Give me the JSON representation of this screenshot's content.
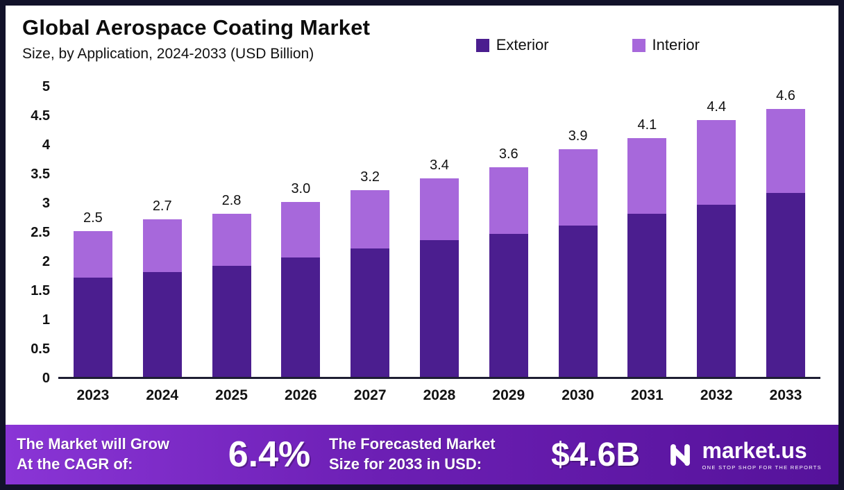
{
  "header": {
    "title": "Global Aerospace Coating Market",
    "subtitle": "Size, by Application, 2024-2033 (USD Billion)"
  },
  "legend": {
    "items": [
      {
        "label": "Exterior",
        "color": "#4b1e8f"
      },
      {
        "label": "Interior",
        "color": "#a768db"
      }
    ]
  },
  "chart_data": {
    "type": "bar",
    "stacked": true,
    "title": "Global Aerospace Coating Market Size, by Application, 2024-2033 (USD Billion)",
    "categories": [
      "2023",
      "2024",
      "2025",
      "2026",
      "2027",
      "2028",
      "2029",
      "2030",
      "2031",
      "2032",
      "2033"
    ],
    "series": [
      {
        "name": "Exterior",
        "color": "#4b1e8f",
        "values": [
          1.7,
          1.8,
          1.9,
          2.05,
          2.2,
          2.35,
          2.45,
          2.6,
          2.8,
          2.95,
          3.15
        ]
      },
      {
        "name": "Interior",
        "color": "#a768db",
        "values": [
          0.8,
          0.9,
          0.9,
          0.95,
          1.0,
          1.05,
          1.15,
          1.3,
          1.3,
          1.45,
          1.45
        ]
      }
    ],
    "totals": [
      2.5,
      2.7,
      2.8,
      3.0,
      3.2,
      3.4,
      3.6,
      3.9,
      4.1,
      4.4,
      4.6
    ],
    "total_labels": [
      "2.5",
      "2.7",
      "2.8",
      "3.0",
      "3.2",
      "3.4",
      "3.6",
      "3.9",
      "4.1",
      "4.4",
      "4.6"
    ],
    "xlabel": "",
    "ylabel": "",
    "ylim": [
      0,
      5
    ],
    "ytick_labels": [
      "0",
      "0.5",
      "1",
      "1.5",
      "2",
      "2.5",
      "3",
      "3.5",
      "4",
      "4.5",
      "5"
    ],
    "ytick_values": [
      0,
      0.5,
      1,
      1.5,
      2,
      2.5,
      3,
      3.5,
      4,
      4.5,
      5
    ],
    "grid": false,
    "legend_position": "top-right"
  },
  "footer": {
    "cagr_label_line1": "The Market will Grow",
    "cagr_label_line2": "At the CAGR of:",
    "cagr_value": "6.4%",
    "forecast_label_line1": "The Forecasted Market",
    "forecast_label_line2": "Size for 2033 in USD:",
    "forecast_value": "$4.6B",
    "brand_name": "market.us",
    "brand_tagline": "ONE STOP SHOP FOR THE REPORTS"
  }
}
